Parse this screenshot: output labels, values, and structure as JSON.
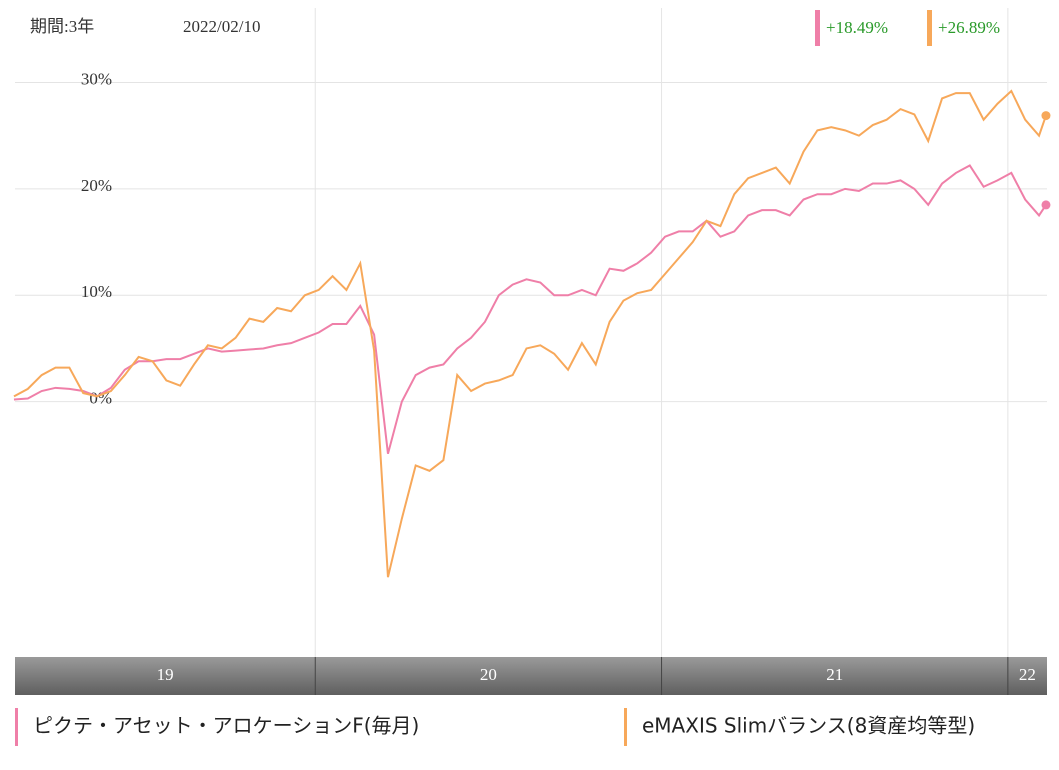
{
  "chart_data": {
    "type": "line",
    "period": "期間:3年",
    "date": "2022/02/10",
    "x": [
      2019.13,
      2019.17,
      2019.21,
      2019.25,
      2019.29,
      2019.33,
      2019.37,
      2019.41,
      2019.45,
      2019.49,
      2019.53,
      2019.57,
      2019.61,
      2019.65,
      2019.69,
      2019.73,
      2019.77,
      2019.81,
      2019.85,
      2019.89,
      2019.93,
      2019.97,
      2020.01,
      2020.05,
      2020.09,
      2020.13,
      2020.17,
      2020.21,
      2020.25,
      2020.29,
      2020.33,
      2020.37,
      2020.41,
      2020.45,
      2020.49,
      2020.53,
      2020.57,
      2020.61,
      2020.65,
      2020.69,
      2020.73,
      2020.77,
      2020.81,
      2020.85,
      2020.89,
      2020.93,
      2020.97,
      2021.01,
      2021.05,
      2021.09,
      2021.13,
      2021.17,
      2021.21,
      2021.25,
      2021.29,
      2021.33,
      2021.37,
      2021.41,
      2021.45,
      2021.49,
      2021.53,
      2021.57,
      2021.61,
      2021.65,
      2021.69,
      2021.73,
      2021.77,
      2021.81,
      2021.85,
      2021.89,
      2021.93,
      2021.97,
      2022.01,
      2022.05,
      2022.09,
      2022.11
    ],
    "series": [
      {
        "name": "ピクテ・アセット・アロケーションF(毎月)",
        "color": "#ef7fa8",
        "end_label": "+18.49%",
        "values": [
          0.2,
          0.3,
          1.0,
          1.3,
          1.2,
          1.0,
          0.5,
          1.3,
          3.0,
          3.8,
          3.8,
          4.0,
          4.0,
          4.5,
          5.0,
          4.7,
          4.8,
          4.9,
          5.0,
          5.3,
          5.5,
          6.0,
          6.5,
          7.3,
          7.3,
          9.0,
          6.3,
          -4.9,
          0,
          2.5,
          3.2,
          3.5,
          5.0,
          6.0,
          7.5,
          10.0,
          11.0,
          11.5,
          11.2,
          10.0,
          10.0,
          10.5,
          10.0,
          12.5,
          12.3,
          13.0,
          14.0,
          15.5,
          16.0,
          16.0,
          17.0,
          15.5,
          16.0,
          17.5,
          18.0,
          18.0,
          17.5,
          19.0,
          19.5,
          19.5,
          20.0,
          19.8,
          20.5,
          20.5,
          20.8,
          20.0,
          18.5,
          20.5,
          21.5,
          22.2,
          20.2,
          20.8,
          21.5,
          19.0,
          17.5,
          18.49
        ]
      },
      {
        "name": "eMAXIS Slimバランス(8資産均等型)",
        "color": "#f7a85a",
        "end_label": "+26.89%",
        "values": [
          0.5,
          1.2,
          2.5,
          3.2,
          3.2,
          0.8,
          0.5,
          1.0,
          2.5,
          4.2,
          3.8,
          2.0,
          1.5,
          3.5,
          5.3,
          5.0,
          6.0,
          7.8,
          7.5,
          8.8,
          8.5,
          10.0,
          10.5,
          11.8,
          10.5,
          13.0,
          4.8,
          -16.5,
          -11.0,
          -6.0,
          -6.5,
          -5.5,
          2.5,
          1.0,
          1.7,
          2.0,
          2.5,
          5.0,
          5.3,
          4.5,
          3.0,
          5.5,
          3.5,
          7.5,
          9.5,
          10.2,
          10.5,
          12.0,
          13.5,
          15.0,
          17.0,
          16.5,
          19.5,
          21.0,
          21.5,
          22.0,
          20.5,
          23.5,
          25.5,
          25.8,
          25.5,
          25.0,
          26.0,
          26.5,
          27.5,
          27.0,
          24.5,
          28.5,
          29.0,
          29.0,
          26.5,
          28.0,
          29.2,
          26.5,
          25.0,
          26.89
        ]
      }
    ],
    "xlim": [
      2019.133,
      2022.113
    ],
    "xticks": [
      {
        "value": 2019,
        "label": "19"
      },
      {
        "value": 2020,
        "label": "20"
      },
      {
        "value": 2021,
        "label": "21"
      },
      {
        "value": 2022,
        "label": "22"
      }
    ],
    "ylim": [
      -24,
      37
    ],
    "yticks": [
      {
        "value": 0,
        "label": "0%"
      },
      {
        "value": 10,
        "label": "10%"
      },
      {
        "value": 20,
        "label": "20%"
      },
      {
        "value": 30,
        "label": "30%"
      }
    ],
    "grid": true
  }
}
